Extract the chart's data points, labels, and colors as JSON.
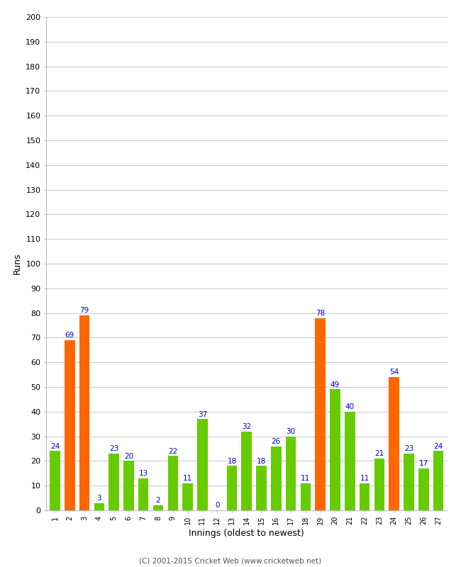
{
  "innings": [
    1,
    2,
    3,
    4,
    5,
    6,
    7,
    8,
    9,
    10,
    11,
    12,
    13,
    14,
    15,
    16,
    17,
    18,
    19,
    20,
    21,
    22,
    23,
    24,
    25,
    26,
    27
  ],
  "values": [
    24,
    69,
    79,
    3,
    23,
    20,
    13,
    2,
    22,
    11,
    37,
    0,
    18,
    32,
    18,
    26,
    30,
    11,
    78,
    49,
    40,
    11,
    21,
    54,
    23,
    17,
    24
  ],
  "colors": [
    "#66cc00",
    "#ff6600",
    "#ff6600",
    "#66cc00",
    "#66cc00",
    "#66cc00",
    "#66cc00",
    "#66cc00",
    "#66cc00",
    "#66cc00",
    "#66cc00",
    "#66cc00",
    "#66cc00",
    "#66cc00",
    "#66cc00",
    "#66cc00",
    "#66cc00",
    "#66cc00",
    "#ff6600",
    "#66cc00",
    "#66cc00",
    "#66cc00",
    "#66cc00",
    "#ff6600",
    "#66cc00",
    "#66cc00",
    "#66cc00"
  ],
  "xlabel": "Innings (oldest to newest)",
  "ylabel": "Runs",
  "ylim": [
    0,
    200
  ],
  "yticks": [
    0,
    10,
    20,
    30,
    40,
    50,
    60,
    70,
    80,
    90,
    100,
    110,
    120,
    130,
    140,
    150,
    160,
    170,
    180,
    190,
    200
  ],
  "label_color": "#0000cc",
  "label_fontsize": 7.5,
  "background_color": "#ffffff",
  "grid_color": "#cccccc",
  "footer": "(C) 2001-2015 Cricket Web (www.cricketweb.net)"
}
